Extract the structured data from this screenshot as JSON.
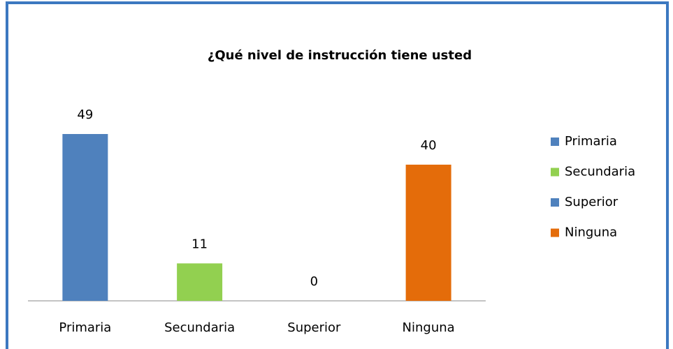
{
  "chart_data": {
    "type": "bar",
    "title": "¿Qué nivel de instrucción tiene usted",
    "categories": [
      "Primaria",
      "Secundaria",
      "Superior",
      "Ninguna"
    ],
    "values": [
      49,
      11,
      0,
      40
    ],
    "colors": [
      "#4f81bd",
      "#92d050",
      "#4f81bd",
      "#e46c0a"
    ],
    "legend": "right"
  }
}
